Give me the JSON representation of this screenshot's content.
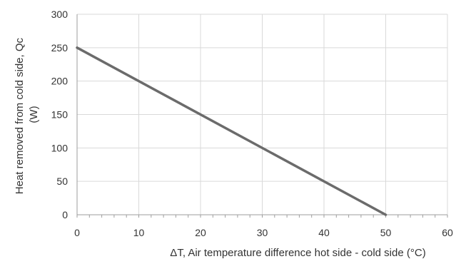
{
  "chart_data": {
    "type": "line",
    "title": "",
    "xlabel": "ΔT, Air temperature difference hot side - cold side (°C)",
    "ylabel": "Heat removed from cold side, Qc (W)",
    "ylabel_lines": [
      "Heat removed from cold side, Qc",
      "(W)"
    ],
    "xlim": [
      0,
      60
    ],
    "ylim": [
      0,
      300
    ],
    "xticks": [
      0,
      10,
      20,
      30,
      40,
      50,
      60
    ],
    "yticks": [
      0,
      50,
      100,
      150,
      200,
      250,
      300
    ],
    "grid": true,
    "series": [
      {
        "color": "#6b6b6b",
        "x": [
          0,
          50
        ],
        "y": [
          250,
          0
        ]
      }
    ]
  }
}
